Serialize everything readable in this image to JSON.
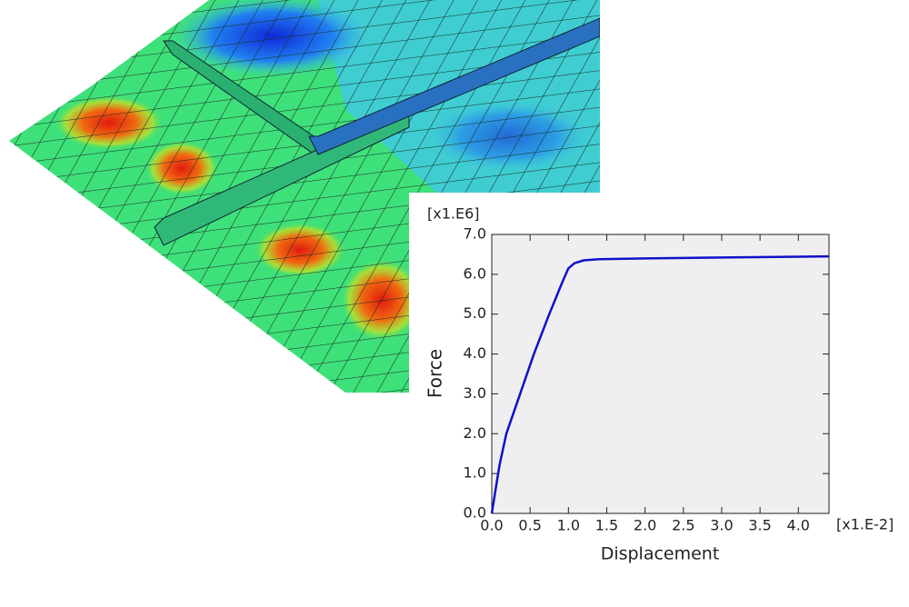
{
  "chart_data": {
    "type": "line",
    "y_multiplier": "[x1.E6]",
    "x_multiplier": "[x1.E-2]",
    "y_label": "Force",
    "x_label": "Displacement",
    "x": [
      0,
      0.05,
      0.1,
      0.19,
      0.37,
      0.55,
      0.75,
      0.92,
      1.0,
      1.08,
      1.2,
      1.4,
      2.0,
      3.0,
      4.0,
      4.4
    ],
    "series": [
      {
        "color": "#1010c8",
        "values": [
          0,
          0.6,
          1.2,
          2.0,
          3.0,
          4.0,
          5.0,
          5.8,
          6.15,
          6.28,
          6.35,
          6.38,
          6.4,
          6.42,
          6.44,
          6.45
        ]
      }
    ],
    "xlim": [
      0,
      4.4
    ],
    "ylim": [
      0,
      7
    ],
    "xticks": [
      {
        "value": 0,
        "label": "0.0"
      },
      {
        "value": 0.5,
        "label": "0.5"
      },
      {
        "value": 1,
        "label": "1.0"
      },
      {
        "value": 1.5,
        "label": "1.5"
      },
      {
        "value": 2,
        "label": "2.0"
      },
      {
        "value": 2.5,
        "label": "2.5"
      },
      {
        "value": 3,
        "label": "3.0"
      },
      {
        "value": 3.5,
        "label": "3.5"
      },
      {
        "value": 4,
        "label": "4.0"
      }
    ],
    "yticks": [
      {
        "value": 0,
        "label": "0.0"
      },
      {
        "value": 1,
        "label": "1.0"
      },
      {
        "value": 2,
        "label": "2.0"
      },
      {
        "value": 3,
        "label": "3.0"
      },
      {
        "value": 4,
        "label": "4.0"
      },
      {
        "value": 5,
        "label": "5.0"
      },
      {
        "value": 6,
        "label": "6.0"
      },
      {
        "value": 7,
        "label": "7.0"
      }
    ],
    "grid": false
  }
}
